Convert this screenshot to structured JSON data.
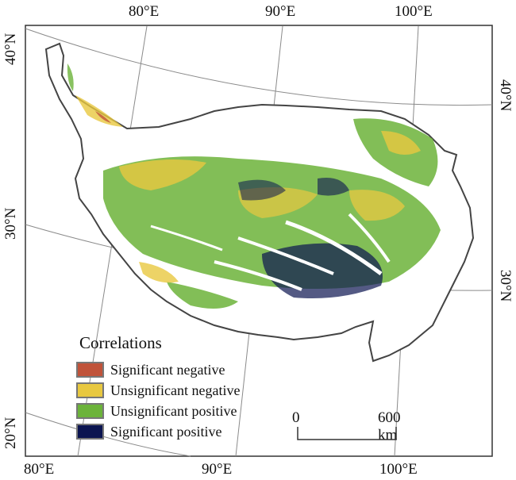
{
  "graticule": {
    "top_labels": [
      "80°E",
      "90°E",
      "100°E"
    ],
    "bottom_labels": [
      "80°E",
      "90°E",
      "100°E"
    ],
    "left_labels": [
      "40°N",
      "30°N",
      "20°N"
    ],
    "right_labels": [
      "40°N",
      "30°N"
    ]
  },
  "legend": {
    "title": "Correlations",
    "items": [
      {
        "label": "Significant negative",
        "color": "#c0533a"
      },
      {
        "label": "Unsignificant negative",
        "color": "#e8c840"
      },
      {
        "label": "Unsignificant positive",
        "color": "#6cb33a"
      },
      {
        "label": "Significant positive",
        "color": "#0b1450"
      }
    ]
  },
  "scale_bar": {
    "start_label": "0",
    "end_label": "600 km"
  },
  "colors": {
    "boundary": "#444444",
    "graticule": "#888888",
    "frame": "#333333"
  }
}
